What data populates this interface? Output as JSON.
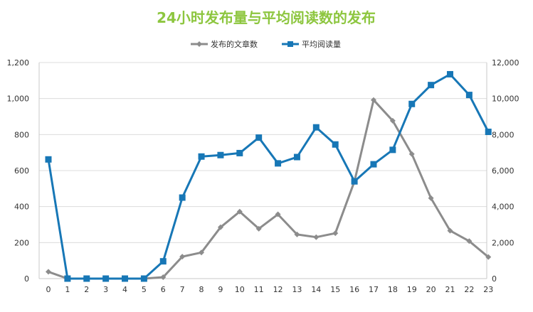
{
  "chart_data": {
    "type": "line",
    "title": "24小时发布量与平均阅读数的发布",
    "categories": [
      "0",
      "1",
      "2",
      "3",
      "4",
      "5",
      "6",
      "7",
      "8",
      "9",
      "10",
      "11",
      "12",
      "13",
      "14",
      "15",
      "16",
      "17",
      "18",
      "19",
      "20",
      "21",
      "22",
      "23"
    ],
    "series": [
      {
        "name": "发布的文章数",
        "axis": "left",
        "color": "#8c8c8c",
        "marker": "diamond",
        "values": [
          38,
          0,
          0,
          0,
          0,
          0,
          8,
          122,
          145,
          285,
          372,
          277,
          357,
          245,
          230,
          252,
          540,
          992,
          877,
          692,
          447,
          266,
          208,
          120
        ]
      },
      {
        "name": "平均阅读量",
        "axis": "right",
        "color": "#1777b6",
        "marker": "square",
        "values": [
          6620,
          0,
          0,
          0,
          0,
          0,
          960,
          4500,
          6780,
          6860,
          6970,
          7830,
          6400,
          6750,
          8400,
          7450,
          5400,
          6350,
          7150,
          9700,
          10750,
          11350,
          10200,
          8150
        ]
      }
    ],
    "y_left": {
      "ylim": [
        0,
        1200
      ],
      "ticks": [
        "0",
        "200",
        "400",
        "600",
        "800",
        "1,000",
        "1,200"
      ]
    },
    "y_right": {
      "ylim": [
        0,
        12000
      ],
      "ticks": [
        "0",
        "2,000",
        "4,000",
        "6,000",
        "8,000",
        "10,000",
        "12,000"
      ]
    },
    "grid": true,
    "legend_position": "top-center",
    "title_color": "#8dc63f"
  }
}
